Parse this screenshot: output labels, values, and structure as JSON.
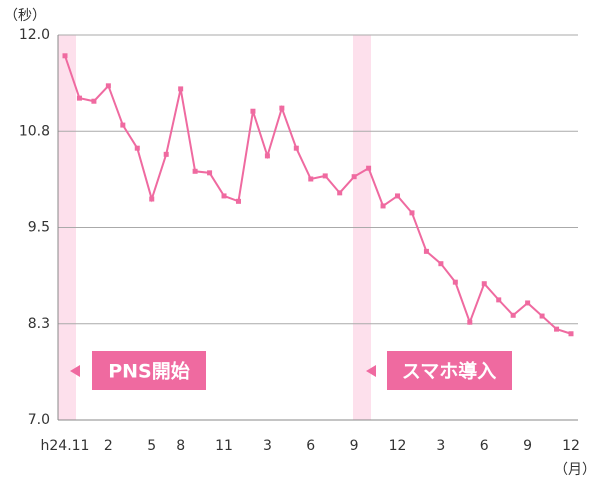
{
  "chart_data": {
    "type": "line",
    "y_label": "（秒）",
    "x_label": "（月）",
    "categories": [
      "h24.11",
      null,
      null,
      "2",
      null,
      null,
      "5",
      null,
      "8",
      null,
      null,
      "11",
      null,
      null,
      "3",
      null,
      null,
      "6",
      null,
      null,
      "9",
      null,
      null,
      "12",
      null,
      null,
      "3",
      null,
      null,
      "6",
      null,
      null,
      "9",
      null,
      null,
      "12"
    ],
    "series": [
      {
        "color": "#ef6aa0",
        "values": [
          11.73,
          11.18,
          11.14,
          11.34,
          10.83,
          10.53,
          9.87,
          10.45,
          11.3,
          10.23,
          10.21,
          9.91,
          9.84,
          11.01,
          10.43,
          11.05,
          10.53,
          10.13,
          10.17,
          9.95,
          10.16,
          10.27,
          9.78,
          9.91,
          9.69,
          9.19,
          9.03,
          8.79,
          8.27,
          8.77,
          8.56,
          8.36,
          8.52,
          8.35,
          8.18,
          8.12
        ]
      }
    ],
    "ylim": [
      7,
      12
    ],
    "yticks": [
      {
        "value": 7,
        "label": "7.0"
      },
      {
        "value": 8.25,
        "label": "8.3"
      },
      9.5,
      {
        "value": 10.75,
        "label": "10.8"
      },
      {
        "value": 12,
        "label": "12.0"
      }
    ],
    "grid": true,
    "annotations": [
      "PNS開始",
      "スマホ導入"
    ]
  }
}
